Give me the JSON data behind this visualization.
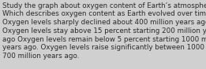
{
  "background_color": "#d0d0d0",
  "text": "Study the graph about oxygen content of Earth’s atmosphere.\nWhich describes oxygen content as Earth evolved over time?\nOxygen levels sharply declined about 400 million years ago.\nOxygen levels stay above 15 percent starting 200 million years\nago Oxygen levels remain below 5 percent starting 1000 million\nyears ago. Oxygen levels raise significantly between 1000 and\n700 million years ago.",
  "font_size": 6.3,
  "text_color": "#2a2a2a",
  "fig_width": 2.61,
  "fig_height": 0.88,
  "dpi": 100
}
